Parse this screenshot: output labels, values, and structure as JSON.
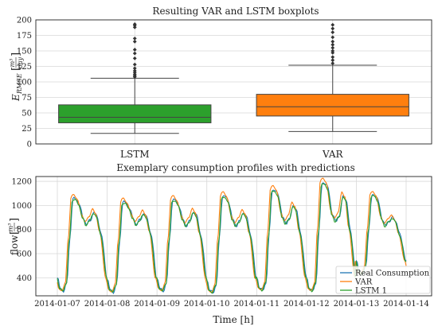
{
  "chart_data": [
    {
      "type": "box",
      "title": "Resulting VAR and LSTM boxplots",
      "ylabel": "E_RMSE [m³/day]",
      "ylabel_main": "E",
      "ylabel_sub": "RMSE",
      "ylabel_unit_num": "m³",
      "ylabel_unit_den": "day",
      "ylim": [
        0,
        200
      ],
      "yticks": [
        0,
        25,
        50,
        75,
        100,
        125,
        150,
        175,
        200
      ],
      "grid": true,
      "categories": [
        "LSTM",
        "VAR"
      ],
      "boxes": [
        {
          "name": "LSTM",
          "color": "#2ca02c",
          "whisker_low": 17,
          "q1": 34,
          "median": 43,
          "q3": 63,
          "whisker_high": 106,
          "outliers": [
            108,
            110,
            112,
            115,
            118,
            122,
            128,
            138,
            146,
            152,
            165,
            170,
            188,
            191,
            193
          ]
        },
        {
          "name": "VAR",
          "color": "#ff7f0e",
          "whisker_low": 20,
          "q1": 45,
          "median": 60,
          "q3": 80,
          "whisker_high": 127,
          "outliers": [
            130,
            135,
            140,
            147,
            150,
            155,
            160,
            165,
            172,
            180,
            186,
            192
          ]
        }
      ]
    },
    {
      "type": "line",
      "title": "Exemplary consumption profiles with predictions",
      "xlabel": "Time [h]",
      "ylabel": "flow [m³/h]",
      "ylabel_main": "flow",
      "ylabel_unit_num": "m³",
      "ylabel_unit_den": "h",
      "ylim": [
        250,
        1240
      ],
      "yticks": [
        400,
        600,
        800,
        1000,
        1200
      ],
      "xlim": [
        0,
        7
      ],
      "xticks": [
        "2014-01-07",
        "2014-01-08",
        "2014-01-09",
        "2014-01-10",
        "2014-01-11",
        "2014-01-12",
        "2014-01-13",
        "2014-01-14"
      ],
      "grid": true,
      "legend": "bottom-right",
      "days": [
        {
          "min": 290,
          "peak": 1060,
          "dip": 840,
          "evening": 945
        },
        {
          "min": 280,
          "peak": 1030,
          "dip": 840,
          "evening": 935
        },
        {
          "min": 290,
          "peak": 1050,
          "dip": 830,
          "evening": 950
        },
        {
          "min": 275,
          "peak": 1080,
          "dip": 830,
          "evening": 940
        },
        {
          "min": 295,
          "peak": 1130,
          "dip": 850,
          "evening": 1000
        },
        {
          "min": 290,
          "peak": 1190,
          "dip": 870,
          "evening": 1080
        },
        {
          "min": 430,
          "peak": 1090,
          "dip": 830,
          "evening": 900
        }
      ],
      "series": [
        {
          "name": "Real Consumption",
          "color": "#1f77b4",
          "scale": 1.0,
          "shift": 0,
          "noise": 1
        },
        {
          "name": "VAR",
          "color": "#ff7f0e",
          "scale": 1.04,
          "shift": 0.03,
          "noise": 0.3
        },
        {
          "name": "LSTM 1",
          "color": "#2ca02c",
          "scale": 0.99,
          "shift": 0.01,
          "noise": 0.6
        }
      ]
    }
  ]
}
